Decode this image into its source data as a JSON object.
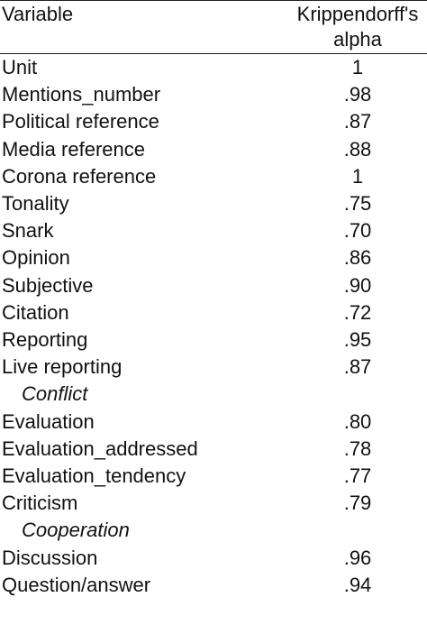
{
  "table": {
    "header": [
      "Variable",
      "Krippendorff's alpha"
    ],
    "rows": [
      [
        "Unit",
        "1"
      ],
      [
        "Mentions_number",
        ".98"
      ],
      [
        "Political reference",
        ".87"
      ],
      [
        "Media reference",
        ".88"
      ],
      [
        "Corona reference",
        "1"
      ],
      [
        "Tonality",
        ".75"
      ],
      [
        "Snark",
        ".70"
      ],
      [
        "Opinion",
        ".86"
      ],
      [
        "Subjective",
        ".90"
      ],
      [
        "Citation",
        ".72"
      ],
      [
        "Reporting",
        ".95"
      ],
      [
        "Live reporting",
        ".87"
      ],
      [
        "Conflict"
      ],
      [
        "Evaluation",
        ".80"
      ],
      [
        "Evaluation_addressed",
        ".78"
      ],
      [
        "Evaluation_tendency",
        ".77"
      ],
      [
        "Criticism",
        ".79"
      ],
      [
        "Cooperation"
      ],
      [
        "Discussion",
        ".96"
      ],
      [
        "Question/answer",
        ".94"
      ]
    ]
  }
}
